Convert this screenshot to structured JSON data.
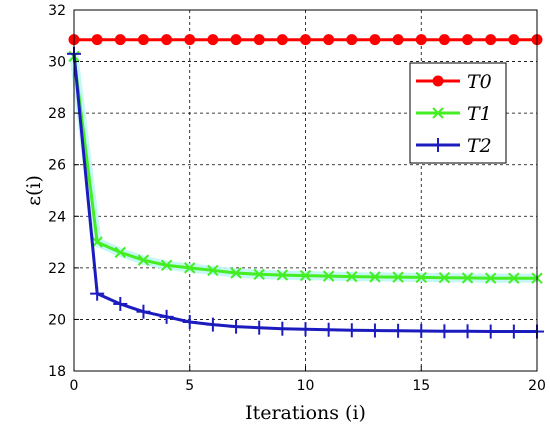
{
  "chart_data": {
    "type": "line",
    "xlabel": "Iterations (i)",
    "ylabel": "ε(i)",
    "xlim": [
      0,
      20
    ],
    "ylim": [
      18,
      32
    ],
    "x_ticks": [
      "0",
      "5",
      "10",
      "15",
      "20"
    ],
    "y_ticks": [
      "18",
      "20",
      "22",
      "24",
      "26",
      "28",
      "30",
      "32"
    ],
    "grid": true,
    "legend_position": "top-right",
    "x": [
      0,
      1,
      2,
      3,
      4,
      5,
      6,
      7,
      8,
      9,
      10,
      11,
      12,
      13,
      14,
      15,
      16,
      17,
      18,
      19,
      20
    ],
    "series": [
      {
        "name": "T0",
        "marker": "circle",
        "color": "#ff0000",
        "values": [
          30.85,
          30.85,
          30.85,
          30.85,
          30.85,
          30.85,
          30.85,
          30.85,
          30.85,
          30.85,
          30.85,
          30.85,
          30.85,
          30.85,
          30.85,
          30.85,
          30.85,
          30.85,
          30.85,
          30.85,
          30.85
        ]
      },
      {
        "name": "T1",
        "marker": "x",
        "color": "#44ee22",
        "values": [
          30.2,
          23.0,
          22.6,
          22.3,
          22.1,
          22.0,
          21.9,
          21.8,
          21.75,
          21.72,
          21.7,
          21.68,
          21.66,
          21.65,
          21.64,
          21.63,
          21.62,
          21.61,
          21.6,
          21.6,
          21.6
        ]
      },
      {
        "name": "T2",
        "marker": "plus",
        "color": "#1c1cbe",
        "values": [
          30.3,
          21.0,
          20.6,
          20.3,
          20.1,
          19.9,
          19.8,
          19.72,
          19.68,
          19.64,
          19.62,
          19.6,
          19.58,
          19.57,
          19.56,
          19.55,
          19.54,
          19.54,
          19.53,
          19.53,
          19.53
        ]
      }
    ]
  }
}
